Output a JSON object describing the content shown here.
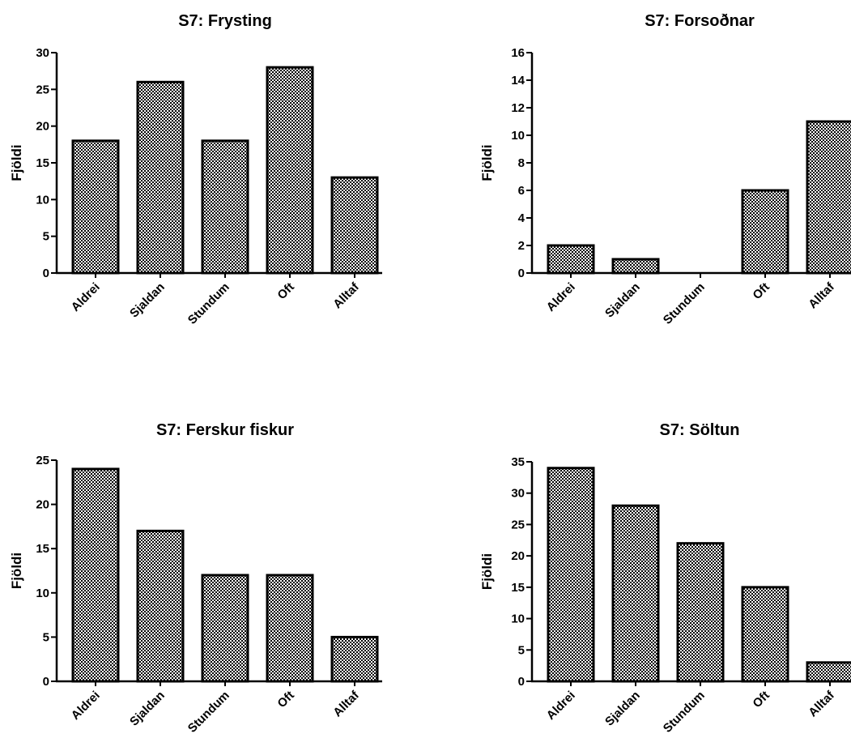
{
  "chart_data": [
    {
      "type": "bar",
      "title": "S7: Frysting",
      "ylabel": "Fjöldi",
      "xlabel": "",
      "categories": [
        "Aldrei",
        "Sjaldan",
        "Stundum",
        "Oft",
        "Alltaf"
      ],
      "values": [
        18,
        26,
        18,
        28,
        13
      ],
      "ylim": [
        0,
        30
      ],
      "yticks": [
        0,
        5,
        10,
        15,
        20,
        25,
        30
      ]
    },
    {
      "type": "bar",
      "title": "S7: Forsoðnar",
      "ylabel": "Fjöldi",
      "xlabel": "",
      "categories": [
        "Aldrei",
        "Sjaldan",
        "Stundum",
        "Oft",
        "Alltaf"
      ],
      "values": [
        2,
        1,
        0,
        6,
        11
      ],
      "ylim": [
        0,
        16
      ],
      "yticks": [
        0,
        2,
        4,
        6,
        8,
        10,
        12,
        14,
        16
      ]
    },
    {
      "type": "bar",
      "title": "S7: Ferskur fiskur",
      "ylabel": "Fjöldi",
      "xlabel": "",
      "categories": [
        "Aldrei",
        "Sjaldan",
        "Stundum",
        "Oft",
        "Alltaf"
      ],
      "values": [
        24,
        17,
        12,
        12,
        5
      ],
      "ylim": [
        0,
        25
      ],
      "yticks": [
        0,
        5,
        10,
        15,
        20,
        25
      ]
    },
    {
      "type": "bar",
      "title": "S7: Söltun",
      "ylabel": "Fjöldi",
      "xlabel": "",
      "categories": [
        "Aldrei",
        "Sjaldan",
        "Stundum",
        "Oft",
        "Alltaf"
      ],
      "values": [
        34,
        28,
        22,
        15,
        3
      ],
      "ylim": [
        0,
        35
      ],
      "yticks": [
        0,
        5,
        10,
        15,
        20,
        25,
        30,
        35
      ]
    }
  ],
  "style": {
    "bar_fill_a": "#000000",
    "bar_fill_b": "#ffffff",
    "axis_color": "#000000"
  }
}
